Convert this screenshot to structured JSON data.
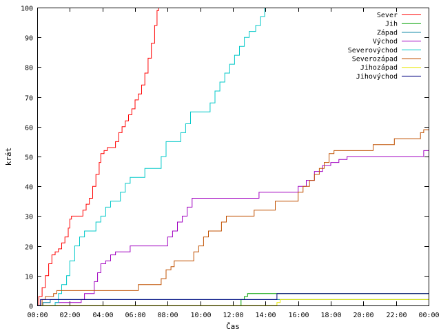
{
  "chart_data": {
    "type": "line",
    "step": true,
    "xlabel": "Čas",
    "ylabel": "krát",
    "xlim": [
      0,
      24
    ],
    "ylim": [
      0,
      100
    ],
    "xticks": [
      {
        "value": 0,
        "label": "00:00"
      },
      {
        "value": 2,
        "label": "02:00"
      },
      {
        "value": 4,
        "label": "04:00"
      },
      {
        "value": 6,
        "label": "06:00"
      },
      {
        "value": 8,
        "label": "08:00"
      },
      {
        "value": 10,
        "label": "10:00"
      },
      {
        "value": 12,
        "label": "12:00"
      },
      {
        "value": 14,
        "label": "14:00"
      },
      {
        "value": 16,
        "label": "16:00"
      },
      {
        "value": 18,
        "label": "18:00"
      },
      {
        "value": 20,
        "label": "20:00"
      },
      {
        "value": 22,
        "label": "22:00"
      },
      {
        "value": 24,
        "label": "00:00"
      }
    ],
    "yticks": [
      {
        "value": 0,
        "label": "0"
      },
      {
        "value": 10,
        "label": "10"
      },
      {
        "value": 20,
        "label": "20"
      },
      {
        "value": 30,
        "label": "30"
      },
      {
        "value": 40,
        "label": "40"
      },
      {
        "value": 50,
        "label": "50"
      },
      {
        "value": 60,
        "label": "60"
      },
      {
        "value": 70,
        "label": "70"
      },
      {
        "value": 80,
        "label": "80"
      },
      {
        "value": 90,
        "label": "90"
      },
      {
        "value": 100,
        "label": "100"
      }
    ],
    "grid": false,
    "legend_position": "top-right",
    "series": [
      {
        "name": "Sever",
        "color": "#ff0000",
        "points": [
          [
            0,
            0
          ],
          [
            0.1,
            3
          ],
          [
            0.3,
            6
          ],
          [
            0.5,
            10
          ],
          [
            0.7,
            14
          ],
          [
            0.9,
            17
          ],
          [
            1.1,
            18
          ],
          [
            1.3,
            19
          ],
          [
            1.5,
            21
          ],
          [
            1.7,
            23
          ],
          [
            1.9,
            26
          ],
          [
            2.0,
            29
          ],
          [
            2.1,
            30
          ],
          [
            2.6,
            30
          ],
          [
            2.8,
            32
          ],
          [
            3.0,
            34
          ],
          [
            3.2,
            36
          ],
          [
            3.4,
            40
          ],
          [
            3.6,
            44
          ],
          [
            3.8,
            48
          ],
          [
            3.9,
            51
          ],
          [
            4.1,
            52
          ],
          [
            4.3,
            53
          ],
          [
            4.6,
            53
          ],
          [
            4.8,
            55
          ],
          [
            5.0,
            58
          ],
          [
            5.2,
            60
          ],
          [
            5.4,
            62
          ],
          [
            5.6,
            64
          ],
          [
            5.8,
            66
          ],
          [
            6.0,
            69
          ],
          [
            6.2,
            71
          ],
          [
            6.4,
            74
          ],
          [
            6.6,
            78
          ],
          [
            6.8,
            83
          ],
          [
            7.0,
            88
          ],
          [
            7.2,
            94
          ],
          [
            7.35,
            99
          ],
          [
            7.45,
            100
          ]
        ]
      },
      {
        "name": "Jih",
        "color": "#00a000",
        "points": [
          [
            0,
            0
          ],
          [
            12.5,
            2
          ],
          [
            12.7,
            3
          ],
          [
            12.9,
            4
          ],
          [
            24,
            4
          ]
        ]
      },
      {
        "name": "Západ",
        "color": "#0080a0",
        "points": [
          [
            0,
            0
          ],
          [
            0.35,
            1
          ],
          [
            0.8,
            2
          ],
          [
            24,
            2
          ]
        ]
      },
      {
        "name": "Východ",
        "color": "#a000c0",
        "points": [
          [
            0,
            0
          ],
          [
            1.1,
            1
          ],
          [
            2.7,
            2
          ],
          [
            2.9,
            4
          ],
          [
            3.3,
            4
          ],
          [
            3.5,
            8
          ],
          [
            3.7,
            11
          ],
          [
            3.9,
            14
          ],
          [
            4.2,
            15
          ],
          [
            4.5,
            17
          ],
          [
            4.8,
            18
          ],
          [
            5.5,
            18
          ],
          [
            5.7,
            20
          ],
          [
            7.8,
            20
          ],
          [
            8.0,
            23
          ],
          [
            8.3,
            25
          ],
          [
            8.6,
            28
          ],
          [
            8.9,
            30
          ],
          [
            9.2,
            33
          ],
          [
            9.5,
            36
          ],
          [
            11.5,
            36
          ],
          [
            13.6,
            38
          ],
          [
            15.9,
            38
          ],
          [
            16.0,
            40
          ],
          [
            16.5,
            42
          ],
          [
            17.0,
            45
          ],
          [
            17.5,
            47
          ],
          [
            18.0,
            48
          ],
          [
            18.5,
            49
          ],
          [
            19.0,
            50
          ],
          [
            23.6,
            50
          ],
          [
            23.7,
            52
          ],
          [
            24,
            52
          ]
        ]
      },
      {
        "name": "Severovýchod",
        "color": "#00c8c8",
        "points": [
          [
            0,
            0
          ],
          [
            1.1,
            1
          ],
          [
            1.3,
            4
          ],
          [
            1.5,
            7
          ],
          [
            1.8,
            10
          ],
          [
            2.0,
            15
          ],
          [
            2.3,
            20
          ],
          [
            2.6,
            23
          ],
          [
            2.9,
            25
          ],
          [
            3.4,
            25
          ],
          [
            3.6,
            28
          ],
          [
            3.9,
            30
          ],
          [
            4.2,
            33
          ],
          [
            4.5,
            35
          ],
          [
            4.8,
            35
          ],
          [
            5.1,
            38
          ],
          [
            5.4,
            41
          ],
          [
            5.7,
            43
          ],
          [
            6.3,
            43
          ],
          [
            6.6,
            46
          ],
          [
            7.4,
            46
          ],
          [
            7.6,
            50
          ],
          [
            7.9,
            55
          ],
          [
            8.5,
            55
          ],
          [
            8.8,
            58
          ],
          [
            9.1,
            61
          ],
          [
            9.4,
            65
          ],
          [
            10.4,
            65
          ],
          [
            10.6,
            68
          ],
          [
            10.9,
            72
          ],
          [
            11.2,
            75
          ],
          [
            11.5,
            78
          ],
          [
            11.8,
            81
          ],
          [
            12.1,
            84
          ],
          [
            12.4,
            87
          ],
          [
            12.7,
            90
          ],
          [
            13.0,
            92
          ],
          [
            13.4,
            94
          ],
          [
            13.7,
            97
          ],
          [
            13.95,
            100
          ]
        ]
      },
      {
        "name": "Severozápad",
        "color": "#c05000",
        "points": [
          [
            0,
            0
          ],
          [
            0.3,
            2
          ],
          [
            0.5,
            3
          ],
          [
            1.0,
            4
          ],
          [
            1.2,
            5
          ],
          [
            6.1,
            5
          ],
          [
            6.2,
            7
          ],
          [
            7.4,
            7
          ],
          [
            7.6,
            9
          ],
          [
            7.9,
            12
          ],
          [
            8.2,
            13
          ],
          [
            8.4,
            15
          ],
          [
            9.4,
            15
          ],
          [
            9.6,
            18
          ],
          [
            9.9,
            20
          ],
          [
            10.2,
            23
          ],
          [
            10.5,
            25
          ],
          [
            11.0,
            25
          ],
          [
            11.3,
            28
          ],
          [
            11.6,
            30
          ],
          [
            13.0,
            30
          ],
          [
            13.3,
            32
          ],
          [
            14.3,
            32
          ],
          [
            14.6,
            35
          ],
          [
            15.8,
            35
          ],
          [
            16.0,
            38
          ],
          [
            16.3,
            40
          ],
          [
            16.7,
            42
          ],
          [
            17.0,
            44
          ],
          [
            17.3,
            46
          ],
          [
            17.6,
            48
          ],
          [
            17.9,
            51
          ],
          [
            18.2,
            52
          ],
          [
            20.3,
            52
          ],
          [
            20.6,
            54
          ],
          [
            21.6,
            54
          ],
          [
            21.9,
            56
          ],
          [
            23.3,
            56
          ],
          [
            23.5,
            58
          ],
          [
            23.7,
            59
          ],
          [
            24,
            59
          ]
        ]
      },
      {
        "name": "Jihozápad",
        "color": "#e8e800",
        "points": [
          [
            0,
            0
          ],
          [
            14.7,
            1
          ],
          [
            14.9,
            2
          ],
          [
            24,
            2
          ]
        ]
      },
      {
        "name": "Jihovýchod",
        "color": "#000080",
        "points": [
          [
            0,
            0
          ],
          [
            0.2,
            2
          ],
          [
            14.6,
            2
          ],
          [
            14.7,
            4
          ],
          [
            24,
            4
          ]
        ]
      }
    ]
  }
}
